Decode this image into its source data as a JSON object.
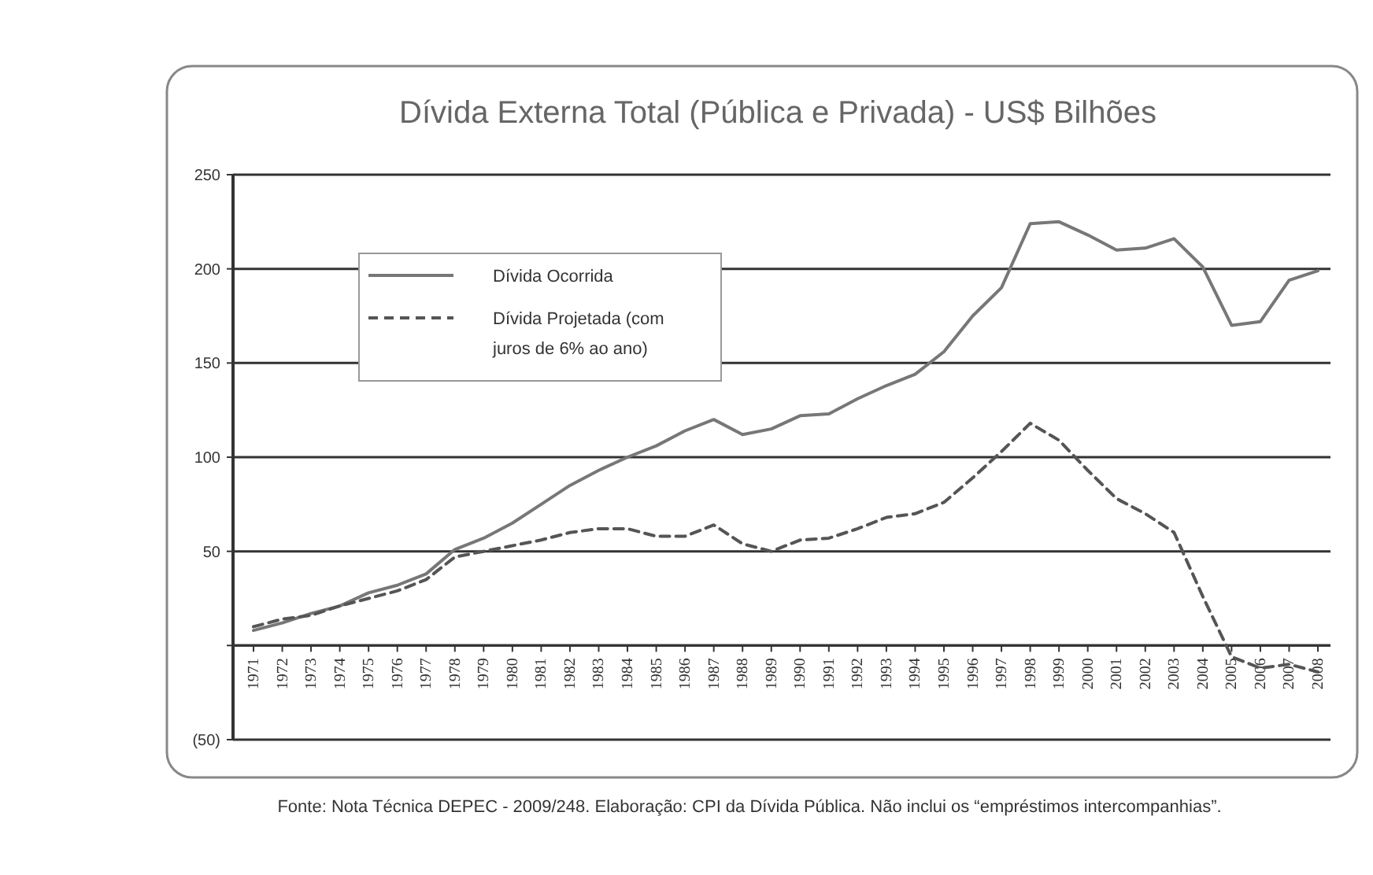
{
  "chart_data": {
    "type": "line",
    "title": "Dívida Externa Total (Pública e Privada) - US$ Bilhões",
    "categories": [
      "1971",
      "1972",
      "1973",
      "1974",
      "1975",
      "1976",
      "1977",
      "1978",
      "1979",
      "1980",
      "1981",
      "1982",
      "1983",
      "1984",
      "1985",
      "1986",
      "1987",
      "1988",
      "1989",
      "1990",
      "1991",
      "1992",
      "1993",
      "1994",
      "1995",
      "1996",
      "1997",
      "1998",
      "1999",
      "2000",
      "2001",
      "2002",
      "2003",
      "2004",
      "2005",
      "2006",
      "2007",
      "2008"
    ],
    "series": [
      {
        "name": "Dívida Ocorrida",
        "color": "#777777",
        "line_style": "solid",
        "values": [
          8,
          12,
          17,
          21,
          28,
          32,
          38,
          51,
          57,
          65,
          75,
          85,
          93,
          100,
          106,
          114,
          120,
          112,
          115,
          122,
          123,
          131,
          138,
          144,
          156,
          175,
          190,
          224,
          225,
          218,
          210,
          211,
          216,
          201,
          170,
          172,
          194,
          199
        ]
      },
      {
        "name": "Dívida Projetada (com juros de 6% ao ano)",
        "color": "#555555",
        "line_style": "dashed",
        "values": [
          10,
          14,
          16,
          21,
          25,
          29,
          35,
          47,
          50,
          53,
          56,
          60,
          62,
          62,
          58,
          58,
          64,
          54,
          50,
          56,
          57,
          62,
          68,
          70,
          76,
          89,
          103,
          118,
          109,
          93,
          78,
          70,
          60,
          26,
          -6,
          -12,
          -10,
          -14
        ]
      }
    ],
    "ylim": [
      -50,
      250
    ],
    "yticks": [
      250,
      200,
      150,
      100,
      50,
      {
        "value": 0,
        "label": null
      },
      {
        "value": -50,
        "label": "(50)"
      }
    ],
    "grid": "y",
    "legend": "top left",
    "marker": "none",
    "annotations": [
      "Fonte: Nota Técnica DEPEC - 2009/248. Elaboração: CPI da Dívida Pública.  Não inclui os “empréstimos intercompanhias”."
    ]
  }
}
